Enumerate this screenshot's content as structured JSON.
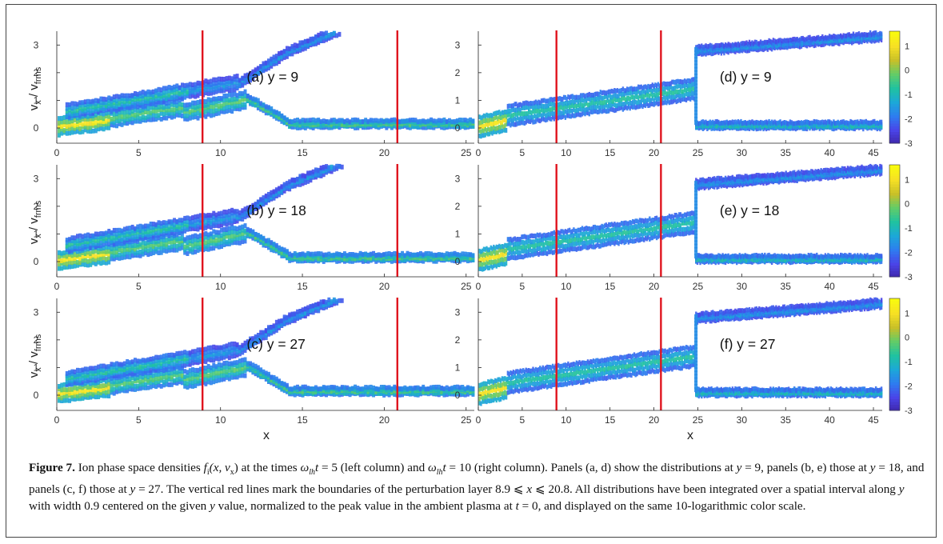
{
  "figure": {
    "label": "Figure 7.",
    "caption_parts": [
      {
        "t": "Ion phase space densities "
      },
      {
        "t": "f",
        "i": true
      },
      {
        "t": "i",
        "sub": true
      },
      {
        "t": "(x, v",
        "i": true
      },
      {
        "t": "x",
        "sub": true
      },
      {
        "t": ") at the times "
      },
      {
        "t": "ω",
        "i": true
      },
      {
        "t": "lh",
        "sub": true,
        "i": true
      },
      {
        "t": "t",
        "i": true
      },
      {
        "t": " = 5 (left column) and "
      },
      {
        "t": "ω",
        "i": true
      },
      {
        "t": "lh",
        "sub": true,
        "i": true
      },
      {
        "t": "t",
        "i": true
      },
      {
        "t": " = 10 (right column). Panels (a, d) show the distributions at "
      },
      {
        "t": "y",
        "i": true
      },
      {
        "t": " = 9, panels (b, e) those at "
      },
      {
        "t": "y",
        "i": true
      },
      {
        "t": " = 18, and panels (c, f) those at "
      },
      {
        "t": "y",
        "i": true
      },
      {
        "t": " = 27. The vertical red lines mark the boundaries of the perturbation layer 8.9 ⩽ "
      },
      {
        "t": "x",
        "i": true
      },
      {
        "t": " ⩽ 20.8. All distributions have been integrated over a spatial interval along "
      },
      {
        "t": "y",
        "i": true
      },
      {
        "t": " with width 0.9 centered on the given "
      },
      {
        "t": "y",
        "i": true
      },
      {
        "t": " value, normalized to the peak value in the ambient plasma at "
      },
      {
        "t": "t",
        "i": true
      },
      {
        "t": " = 0, and displayed on the same 10-logarithmic color scale."
      }
    ]
  },
  "axes_text": {
    "ylabel_main": "v",
    "ylabel_sub1": "x",
    "ylabel_sep": " / v",
    "ylabel_sub2": "frms",
    "xlabel": "x"
  },
  "colors": {
    "boundary_line": "#e0141e",
    "colormap": [
      "#3e26a8",
      "#4a44e8",
      "#2e7cf0",
      "#1ca8d8",
      "#20c2a0",
      "#62cc68",
      "#c8c028",
      "#f6e024",
      "#f9fb0e"
    ]
  },
  "colorbar": {
    "ticks": [
      "1",
      "0",
      "-1",
      "-2",
      "-3"
    ],
    "range": [
      -3,
      1.6
    ]
  },
  "chart_data": [
    {
      "type": "heatmap",
      "panel": "(a)",
      "label": "(a) y = 9",
      "x_ticks": [
        "0",
        "5",
        "10",
        "15",
        "20",
        "25"
      ],
      "y_ticks": [
        "0",
        "1",
        "2",
        "3"
      ],
      "xlim": [
        0,
        25.5
      ],
      "ylim": [
        -0.55,
        3.5
      ],
      "boundaries": [
        8.9,
        20.8
      ],
      "colorbar": false
    },
    {
      "type": "heatmap",
      "panel": "(b)",
      "label": "(b) y = 18",
      "x_ticks": [
        "0",
        "5",
        "10",
        "15",
        "20",
        "25"
      ],
      "y_ticks": [
        "0",
        "1",
        "2",
        "3"
      ],
      "xlim": [
        0,
        25.5
      ],
      "ylim": [
        -0.55,
        3.5
      ],
      "boundaries": [
        8.9,
        20.8
      ],
      "colorbar": false
    },
    {
      "type": "heatmap",
      "panel": "(c)",
      "label": "(c) y = 27",
      "x_ticks": [
        "0",
        "5",
        "10",
        "15",
        "20",
        "25"
      ],
      "y_ticks": [
        "0",
        "1",
        "2",
        "3"
      ],
      "xlim": [
        0,
        25.5
      ],
      "ylim": [
        -0.55,
        3.5
      ],
      "boundaries": [
        8.9,
        20.8
      ],
      "colorbar": false
    },
    {
      "type": "heatmap",
      "panel": "(d)",
      "label": "(d) y = 9",
      "x_ticks": [
        "0",
        "5",
        "10",
        "15",
        "20",
        "25",
        "30",
        "35",
        "40",
        "45"
      ],
      "y_ticks": [
        "0",
        "1",
        "2",
        "3"
      ],
      "xlim": [
        0,
        46
      ],
      "ylim": [
        -0.55,
        3.5
      ],
      "boundaries": [
        8.9,
        20.8
      ],
      "colorbar": true
    },
    {
      "type": "heatmap",
      "panel": "(e)",
      "label": "(e) y = 18",
      "x_ticks": [
        "0",
        "5",
        "10",
        "15",
        "20",
        "25",
        "30",
        "35",
        "40",
        "45"
      ],
      "y_ticks": [
        "0",
        "1",
        "2",
        "3"
      ],
      "xlim": [
        0,
        46
      ],
      "ylim": [
        -0.55,
        3.5
      ],
      "boundaries": [
        8.9,
        20.8
      ],
      "colorbar": true
    },
    {
      "type": "heatmap",
      "panel": "(f)",
      "label": "(f) y = 27",
      "x_ticks": [
        "0",
        "5",
        "10",
        "15",
        "20",
        "25",
        "30",
        "35",
        "40",
        "45"
      ],
      "y_ticks": [
        "0",
        "1",
        "2",
        "3"
      ],
      "xlim": [
        0,
        46
      ],
      "ylim": [
        -0.55,
        3.5
      ],
      "boundaries": [
        8.9,
        20.8
      ],
      "colorbar": true
    }
  ]
}
